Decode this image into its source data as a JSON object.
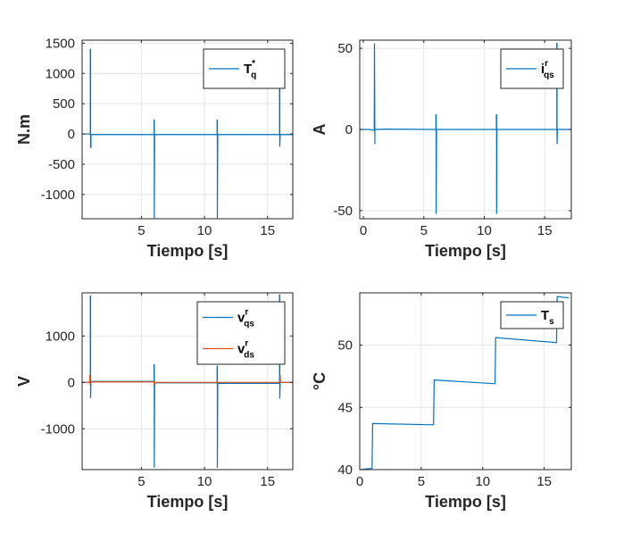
{
  "colors": {
    "series1": "#0072BD",
    "series2": "#D95319",
    "grid": "#e6e6e6",
    "axis": "#262626"
  },
  "chart_data": [
    {
      "type": "line",
      "xlabel": "Tiempo [s]",
      "ylabel": "N.m",
      "xlim": [
        0.3,
        17
      ],
      "ylim": [
        -1400,
        1550
      ],
      "xticks": [
        5,
        10,
        15
      ],
      "yticks": [
        -1000,
        -500,
        0,
        500,
        1000,
        1500
      ],
      "grid": true,
      "legend_position": "top-right",
      "series": [
        {
          "name": "T",
          "sup": "*",
          "sub": "q",
          "x": [
            0.3,
            0.9,
            0.95,
            0.95,
            0.97,
            0.97,
            1.0,
            1.0,
            1.5,
            6.0,
            6.0,
            6.02,
            6.02,
            6.05,
            11.0,
            11.0,
            11.02,
            11.02,
            11.05,
            15.95,
            15.95,
            15.97,
            15.97,
            16.0,
            17.0
          ],
          "y": [
            0,
            0,
            0,
            1400,
            1400,
            -220,
            -220,
            -10,
            -10,
            -10,
            230,
            230,
            -1390,
            -10,
            -10,
            230,
            230,
            -1390,
            -10,
            -10,
            1400,
            1400,
            -210,
            -10,
            -10
          ]
        }
      ]
    },
    {
      "type": "line",
      "xlabel": "Tiempo [s]",
      "ylabel": "A",
      "xlim": [
        -0.3,
        17.2
      ],
      "ylim": [
        -55,
        55
      ],
      "xticks": [
        0,
        5,
        10,
        15
      ],
      "yticks": [
        -50,
        0,
        50
      ],
      "grid": true,
      "legend_position": "top-right",
      "series": [
        {
          "name": "i",
          "sup": "r",
          "sub": "qs",
          "x": [
            -0.3,
            0.5,
            0.9,
            0.9,
            0.92,
            0.92,
            0.95,
            0.95,
            2.0,
            6.0,
            6.0,
            6.02,
            6.02,
            6.05,
            11.0,
            11.0,
            11.02,
            11.02,
            11.05,
            16.0,
            16.0,
            16.02,
            16.02,
            16.05,
            17.2
          ],
          "y": [
            0,
            0,
            -0.5,
            -0.5,
            53,
            53,
            -9,
            0,
            0.2,
            0,
            9,
            9,
            -52,
            0,
            0,
            9,
            9,
            -52,
            0,
            0,
            53,
            53,
            -9,
            0,
            0
          ]
        }
      ]
    },
    {
      "type": "line",
      "xlabel": "Tiempo [s]",
      "ylabel": "V",
      "xlim": [
        0.3,
        17
      ],
      "ylim": [
        -1880,
        1930
      ],
      "xticks": [
        5,
        10,
        15
      ],
      "yticks": [
        -1000,
        0,
        1000
      ],
      "grid": true,
      "legend_position": "top-right",
      "series": [
        {
          "name": "v",
          "sup": "r",
          "sub": "qs",
          "x": [
            0.3,
            0.95,
            0.95,
            0.97,
            0.97,
            1.0,
            6.0,
            6.0,
            6.02,
            6.02,
            6.05,
            11.0,
            11.0,
            11.02,
            11.02,
            11.05,
            15.95,
            15.95,
            15.97,
            15.97,
            16.0,
            17.0
          ],
          "y": [
            0,
            0,
            1860,
            1860,
            -340,
            20,
            20,
            380,
            380,
            -1840,
            -10,
            -10,
            350,
            350,
            -1840,
            -20,
            -20,
            1880,
            1880,
            -350,
            0,
            0
          ]
        },
        {
          "name": "v",
          "sup": "r",
          "sub": "ds",
          "x": [
            0.3,
            0.9,
            0.9,
            0.93,
            0.93,
            0.96,
            6.0,
            6.0,
            6.03,
            11.0,
            11.0,
            11.03,
            16.0,
            16.0,
            16.03,
            17.0
          ],
          "y": [
            0,
            0,
            150,
            150,
            -50,
            10,
            10,
            -50,
            0,
            0,
            40,
            0,
            0,
            160,
            0,
            0
          ]
        }
      ]
    },
    {
      "type": "line",
      "xlabel": "Tiempo [s]",
      "ylabel": "°C",
      "xlim": [
        0,
        17.2
      ],
      "ylim": [
        40,
        54.2
      ],
      "xticks": [
        0,
        5,
        10,
        15
      ],
      "yticks": [
        40,
        45,
        50
      ],
      "grid": true,
      "legend_position": "top-right",
      "series": [
        {
          "name": "T",
          "sup": "",
          "sub": "s",
          "x": [
            0,
            1.0,
            1.05,
            6.0,
            6.05,
            11.0,
            11.05,
            16.0,
            16.05,
            17.0
          ],
          "y": [
            40,
            40.1,
            43.7,
            43.6,
            47.2,
            46.9,
            50.6,
            50.2,
            53.9,
            53.8
          ]
        }
      ]
    }
  ]
}
